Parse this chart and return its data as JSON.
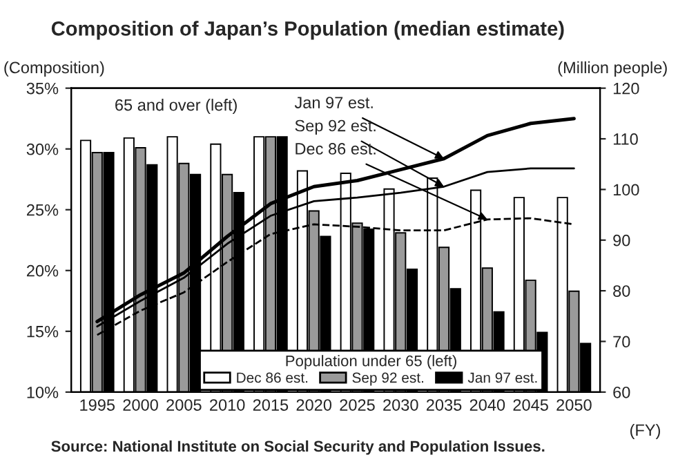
{
  "chart_data": {
    "type": "bar",
    "title": "Composition of Japan’s Population (median estimate)",
    "ylabel": "(Composition)",
    "y2label": "(Million people)",
    "xlabel": "(FY)",
    "legend_title": "Population under 65 (left)",
    "annotations": [
      "65 and over (left)",
      "Source: National Institute on Social Security and Population Issues."
    ],
    "categories": [
      "1995",
      "2000",
      "2005",
      "2010",
      "2015",
      "2020",
      "2025",
      "2030",
      "2035",
      "2040",
      "2045",
      "2050"
    ],
    "series": [
      {
        "name": "Dec 86 est.",
        "color": "#ffffff",
        "values": [
          30.7,
          30.9,
          31.0,
          30.4,
          31.0,
          28.2,
          28.0,
          26.7,
          27.6,
          26.6,
          26.0,
          26.0
        ]
      },
      {
        "name": "Sep 92 est.",
        "color": "#9a9a9a",
        "values": [
          29.7,
          30.1,
          28.8,
          27.9,
          31.0,
          24.9,
          23.9,
          23.1,
          21.9,
          20.2,
          19.2,
          18.3
        ]
      },
      {
        "name": "Jan 97 est.",
        "color": "#000000",
        "values": [
          29.7,
          28.7,
          27.9,
          26.4,
          31.0,
          22.8,
          23.4,
          20.1,
          18.5,
          16.6,
          14.9,
          14.0
        ]
      },
      {
        "name": "Jan 97 est.",
        "type": "line",
        "color": "#000000",
        "line_style": "solid",
        "values": [
          15.8,
          18.0,
          19.8,
          22.8,
          25.5,
          26.9,
          27.4,
          28.3,
          29.2,
          31.1,
          32.1,
          32.5
        ]
      },
      {
        "name": "Sep 92 est.",
        "type": "line",
        "color": "#000000",
        "line_style": "solid",
        "values": [
          15.4,
          17.5,
          19.4,
          22.2,
          24.5,
          25.7,
          26.0,
          26.4,
          26.9,
          28.1,
          28.4,
          28.4
        ]
      },
      {
        "name": "Dec 86 est.",
        "type": "line",
        "color": "#000000",
        "line_style": "dashed",
        "values": [
          14.7,
          16.7,
          18.2,
          20.7,
          23.0,
          23.8,
          23.6,
          23.3,
          23.3,
          24.2,
          24.3,
          23.8
        ]
      }
    ],
    "ylim": [
      10,
      35
    ],
    "yticks": [
      {
        "value": 10,
        "label": "10%"
      },
      {
        "value": 15,
        "label": "15%"
      },
      {
        "value": 20,
        "label": "20%"
      },
      {
        "value": 25,
        "label": "25%"
      },
      {
        "value": 30,
        "label": "30%"
      },
      {
        "value": 35,
        "label": "35%"
      }
    ],
    "y2lim": [
      60,
      120
    ],
    "y2ticks": [
      60,
      70,
      80,
      90,
      100,
      110,
      120
    ],
    "legend": "bottom",
    "grid": false
  }
}
